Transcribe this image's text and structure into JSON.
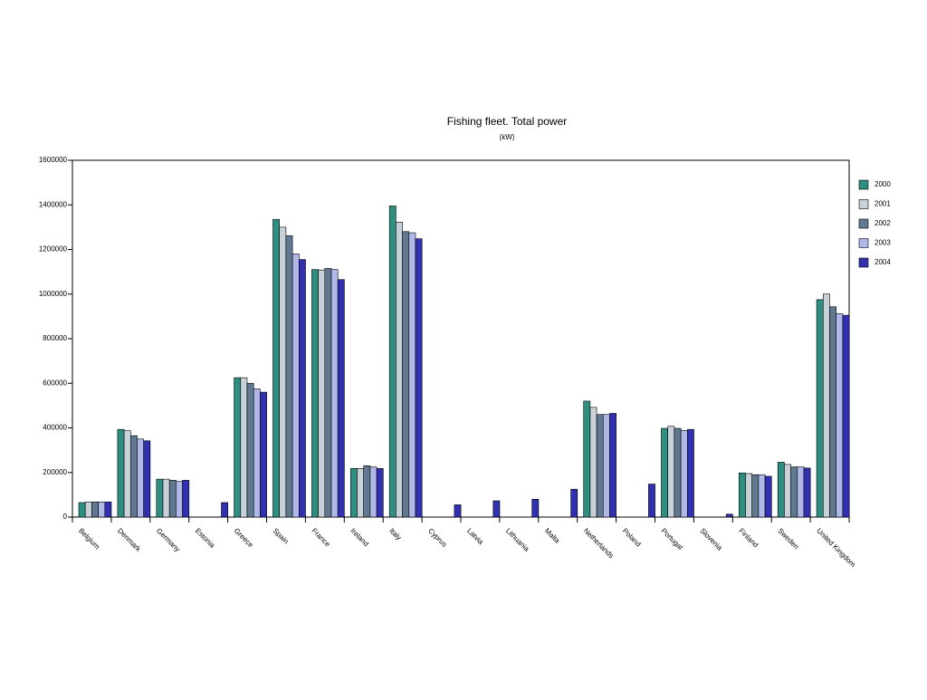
{
  "chart_data": {
    "type": "bar",
    "title": "Fishing fleet. Total power",
    "subtitle": "(kW)",
    "categories": [
      "Belgium",
      "Denmark",
      "Germany",
      "Estonia",
      "Greece",
      "Spain",
      "France",
      "Ireland",
      "Italy",
      "Cyprus",
      "Latvia",
      "Lithuania",
      "Malta",
      "Netherlands",
      "Poland",
      "Portugal",
      "Slovenia",
      "Finland",
      "Sweden",
      "United Kingdom"
    ],
    "series": [
      {
        "name": "2000",
        "color": "#2e8f80",
        "values": [
          65000,
          393000,
          170000,
          null,
          625000,
          1335000,
          1110000,
          218000,
          1395000,
          null,
          null,
          null,
          null,
          520000,
          null,
          398000,
          null,
          198000,
          246000,
          975000
        ]
      },
      {
        "name": "2001",
        "color": "#c8d0d8",
        "values": [
          68000,
          387000,
          170000,
          null,
          625000,
          1300000,
          1108000,
          218000,
          1322000,
          null,
          null,
          null,
          null,
          492000,
          null,
          407000,
          null,
          195000,
          236000,
          1000000
        ]
      },
      {
        "name": "2002",
        "color": "#607890",
        "values": [
          68000,
          365000,
          165000,
          null,
          600000,
          1262000,
          1115000,
          230000,
          1280000,
          null,
          null,
          null,
          null,
          460000,
          null,
          398000,
          null,
          190000,
          225000,
          943000
        ]
      },
      {
        "name": "2003",
        "color": "#b0b8e8",
        "values": [
          68000,
          350000,
          160000,
          null,
          575000,
          1180000,
          1110000,
          225000,
          1275000,
          null,
          null,
          null,
          null,
          460000,
          null,
          388000,
          null,
          190000,
          225000,
          912000
        ]
      },
      {
        "name": "2004",
        "color": "#3030b0",
        "values": [
          68000,
          342000,
          165000,
          65000,
          560000,
          1155000,
          1065000,
          218000,
          1248000,
          55000,
          73000,
          80000,
          125000,
          465000,
          148000,
          393000,
          13000,
          183000,
          220000,
          905000
        ]
      }
    ],
    "ylim": [
      0,
      1600000
    ],
    "yticks": [
      0,
      200000,
      400000,
      600000,
      800000,
      1000000,
      1200000,
      1400000,
      1600000
    ],
    "legend": "right"
  }
}
